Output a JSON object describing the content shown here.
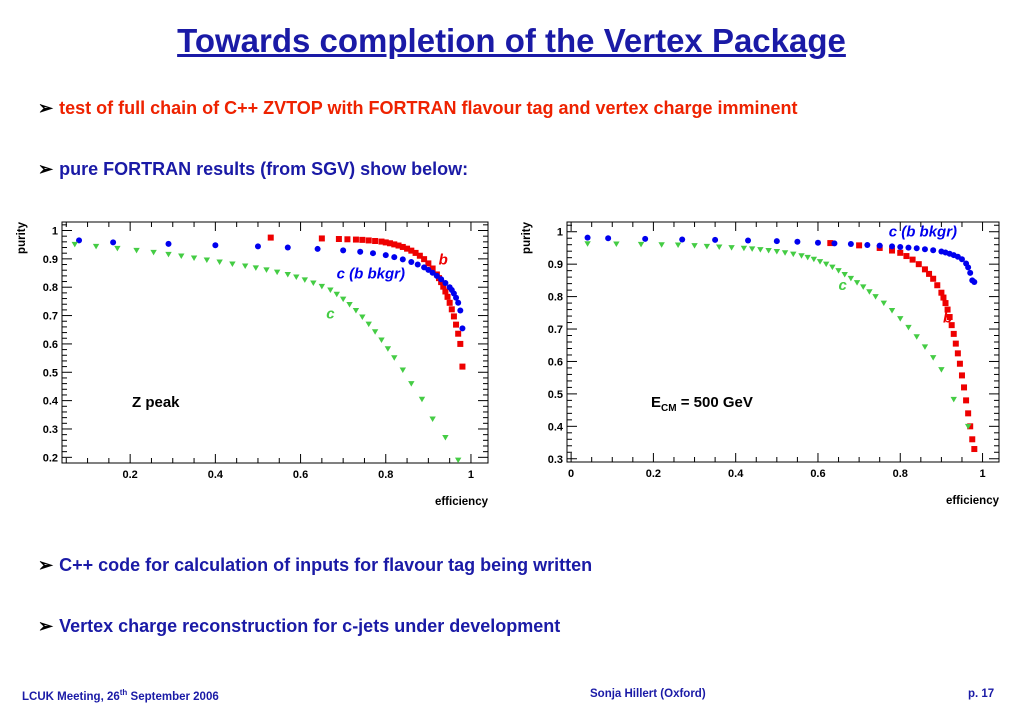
{
  "slide": {
    "title": "Towards completion of the Vertex Package",
    "bullets": [
      "test of full chain of C++ ZVTOP with FORTRAN flavour tag and vertex charge imminent",
      "pure FORTRAN results (from SGV) show below:",
      "C++ code for calculation of inputs for flavour tag being written",
      "Vertex charge reconstruction for c-jets under development"
    ],
    "footer": {
      "left": "LCUK Meeting, 26",
      "left_sup": "th",
      "left_rest": " September 2006",
      "center": "Sonja Hillert (Oxford)",
      "right": "p. 17"
    }
  },
  "colors": {
    "b": "#ee0000",
    "c_bkgr": "#0000ee",
    "c": "#44cc44",
    "title": "#1a1aa6",
    "bullet_red": "#ee2200"
  },
  "chart_data": [
    {
      "type": "scatter",
      "title": "",
      "annotation": "Z peak",
      "xlabel": "efficiency",
      "ylabel": "purity",
      "xlim": [
        0.04,
        1.04
      ],
      "ylim": [
        0.18,
        1.03
      ],
      "xticks": [
        0.2,
        0.4,
        0.6,
        0.8,
        1
      ],
      "yticks": [
        0.2,
        0.3,
        0.4,
        0.5,
        0.6,
        0.7,
        0.8,
        0.9,
        1
      ],
      "grid": false,
      "series": [
        {
          "name": "b",
          "marker": "square",
          "color": "#ee0000",
          "x": [
            0.53,
            0.65,
            0.69,
            0.71,
            0.73,
            0.745,
            0.76,
            0.775,
            0.79,
            0.8,
            0.81,
            0.82,
            0.83,
            0.84,
            0.85,
            0.86,
            0.87,
            0.88,
            0.89,
            0.9,
            0.91,
            0.92,
            0.925,
            0.93,
            0.935,
            0.94,
            0.945,
            0.95,
            0.955,
            0.96,
            0.965,
            0.97,
            0.975,
            0.98
          ],
          "y": [
            0.975,
            0.972,
            0.97,
            0.969,
            0.968,
            0.967,
            0.965,
            0.963,
            0.961,
            0.958,
            0.955,
            0.951,
            0.947,
            0.942,
            0.936,
            0.929,
            0.921,
            0.911,
            0.899,
            0.884,
            0.866,
            0.845,
            0.832,
            0.818,
            0.802,
            0.785,
            0.766,
            0.745,
            0.722,
            0.697,
            0.668,
            0.636,
            0.6,
            0.52
          ]
        },
        {
          "name": "c (b bkgr)",
          "marker": "circle",
          "color": "#0000ee",
          "x": [
            0.08,
            0.16,
            0.29,
            0.4,
            0.5,
            0.57,
            0.64,
            0.7,
            0.74,
            0.77,
            0.8,
            0.82,
            0.84,
            0.86,
            0.875,
            0.89,
            0.9,
            0.91,
            0.92,
            0.93,
            0.94,
            0.95,
            0.955,
            0.96,
            0.965,
            0.97,
            0.975,
            0.98
          ],
          "y": [
            0.965,
            0.958,
            0.953,
            0.948,
            0.944,
            0.94,
            0.935,
            0.93,
            0.925,
            0.92,
            0.913,
            0.906,
            0.898,
            0.889,
            0.88,
            0.87,
            0.861,
            0.851,
            0.84,
            0.828,
            0.815,
            0.8,
            0.79,
            0.778,
            0.763,
            0.745,
            0.718,
            0.655
          ]
        },
        {
          "name": "c",
          "marker": "triangle-down",
          "color": "#44cc44",
          "x": [
            0.07,
            0.12,
            0.17,
            0.215,
            0.255,
            0.29,
            0.32,
            0.35,
            0.38,
            0.41,
            0.44,
            0.47,
            0.495,
            0.52,
            0.545,
            0.57,
            0.59,
            0.61,
            0.63,
            0.65,
            0.67,
            0.685,
            0.7,
            0.715,
            0.73,
            0.745,
            0.76,
            0.775,
            0.79,
            0.805,
            0.82,
            0.84,
            0.86,
            0.885,
            0.91,
            0.94,
            0.97
          ],
          "y": [
            0.951,
            0.944,
            0.937,
            0.93,
            0.923,
            0.916,
            0.91,
            0.903,
            0.896,
            0.889,
            0.882,
            0.875,
            0.868,
            0.861,
            0.853,
            0.845,
            0.836,
            0.826,
            0.815,
            0.803,
            0.79,
            0.775,
            0.758,
            0.739,
            0.718,
            0.695,
            0.67,
            0.643,
            0.614,
            0.583,
            0.551,
            0.508,
            0.46,
            0.405,
            0.335,
            0.27,
            0.19
          ]
        }
      ],
      "labels": [
        {
          "text": "b",
          "series": "b",
          "x": 0.935,
          "y": 0.88
        },
        {
          "text": "c (b bkgr)",
          "series": "c (b bkgr)",
          "x": 0.765,
          "y": 0.83
        },
        {
          "text": "c",
          "series": "c",
          "x": 0.67,
          "y": 0.69
        }
      ]
    },
    {
      "type": "scatter",
      "title": "",
      "annotation": "E",
      "annotation_sub": "CM",
      "annotation_rest": " = 500 GeV",
      "xlabel": "efficiency",
      "ylabel": "purity",
      "xlim": [
        -0.01,
        1.04
      ],
      "ylim": [
        0.29,
        1.03
      ],
      "xticks": [
        0,
        0.2,
        0.4,
        0.6,
        0.8,
        1
      ],
      "yticks": [
        0.3,
        0.4,
        0.5,
        0.6,
        0.7,
        0.8,
        0.9,
        1
      ],
      "grid": false,
      "series": [
        {
          "name": "b",
          "marker": "square",
          "color": "#ee0000",
          "x": [
            0.63,
            0.7,
            0.75,
            0.78,
            0.8,
            0.815,
            0.83,
            0.845,
            0.86,
            0.87,
            0.88,
            0.89,
            0.9,
            0.905,
            0.91,
            0.915,
            0.92,
            0.925,
            0.93,
            0.935,
            0.94,
            0.945,
            0.95,
            0.955,
            0.96,
            0.965,
            0.97,
            0.975,
            0.98
          ],
          "y": [
            0.965,
            0.958,
            0.95,
            0.942,
            0.935,
            0.925,
            0.914,
            0.9,
            0.884,
            0.87,
            0.855,
            0.835,
            0.812,
            0.797,
            0.78,
            0.76,
            0.737,
            0.712,
            0.685,
            0.655,
            0.625,
            0.593,
            0.557,
            0.52,
            0.48,
            0.44,
            0.4,
            0.36,
            0.33
          ]
        },
        {
          "name": "c (b bkgr)",
          "marker": "circle",
          "color": "#0000ee",
          "x": [
            0.04,
            0.09,
            0.18,
            0.27,
            0.35,
            0.43,
            0.5,
            0.55,
            0.6,
            0.64,
            0.68,
            0.72,
            0.75,
            0.78,
            0.8,
            0.82,
            0.84,
            0.86,
            0.88,
            0.9,
            0.91,
            0.92,
            0.93,
            0.94,
            0.95,
            0.96,
            0.965,
            0.97,
            0.975,
            0.98
          ],
          "y": [
            0.982,
            0.98,
            0.978,
            0.976,
            0.975,
            0.973,
            0.971,
            0.969,
            0.966,
            0.964,
            0.962,
            0.959,
            0.957,
            0.955,
            0.953,
            0.951,
            0.949,
            0.946,
            0.943,
            0.939,
            0.936,
            0.932,
            0.928,
            0.923,
            0.915,
            0.902,
            0.89,
            0.873,
            0.85,
            0.845
          ]
        },
        {
          "name": "c",
          "marker": "triangle-down",
          "color": "#44cc44",
          "x": [
            0.04,
            0.11,
            0.17,
            0.22,
            0.26,
            0.3,
            0.33,
            0.36,
            0.39,
            0.42,
            0.44,
            0.46,
            0.48,
            0.5,
            0.52,
            0.54,
            0.56,
            0.575,
            0.59,
            0.605,
            0.62,
            0.635,
            0.65,
            0.665,
            0.68,
            0.695,
            0.71,
            0.725,
            0.74,
            0.76,
            0.78,
            0.8,
            0.82,
            0.84,
            0.86,
            0.88,
            0.9,
            0.93,
            0.965
          ],
          "y": [
            0.963,
            0.962,
            0.961,
            0.96,
            0.959,
            0.957,
            0.955,
            0.953,
            0.951,
            0.949,
            0.947,
            0.945,
            0.942,
            0.939,
            0.935,
            0.931,
            0.926,
            0.921,
            0.915,
            0.908,
            0.9,
            0.891,
            0.88,
            0.868,
            0.856,
            0.843,
            0.83,
            0.815,
            0.8,
            0.78,
            0.757,
            0.732,
            0.705,
            0.676,
            0.645,
            0.612,
            0.575,
            0.483,
            0.4
          ]
        }
      ],
      "labels": [
        {
          "text": "c (b bkgr)",
          "series": "c (b bkgr)",
          "x": 0.855,
          "y": 0.985
        },
        {
          "text": "c",
          "series": "c",
          "x": 0.66,
          "y": 0.82
        },
        {
          "text": "b",
          "series": "b",
          "x": 0.915,
          "y": 0.72
        }
      ]
    }
  ]
}
